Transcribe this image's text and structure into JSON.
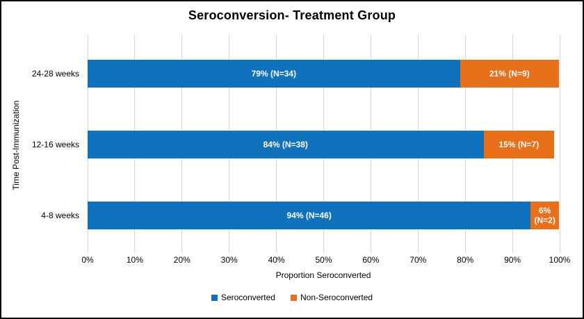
{
  "chart_data": {
    "type": "bar",
    "orientation": "horizontal",
    "stacked": true,
    "title": "Seroconversion- Treatment Group",
    "categories": [
      "24-28 weeks",
      "12-16 weeks",
      "4-8 weeks"
    ],
    "series": [
      {
        "name": "Seroconverted",
        "color": "#1072BC",
        "values": [
          79,
          84,
          94
        ],
        "labels": [
          "79% (N=34)",
          "84% (N=38)",
          "94% (N=46)"
        ]
      },
      {
        "name": "Non-Seroconverted",
        "color": "#E8701A",
        "values": [
          21,
          15,
          6
        ],
        "labels": [
          "21% (N=9)",
          "15% (N=7)",
          "6% (N=2)"
        ]
      }
    ],
    "xlabel": "Proportion Seroconverted",
    "ylabel": "Time Post-Immunization",
    "xlim": [
      0,
      100
    ],
    "xticks": [
      "0%",
      "10%",
      "20%",
      "30%",
      "40%",
      "50%",
      "60%",
      "70%",
      "80%",
      "90%",
      "100%"
    ],
    "grid": true,
    "gridline_color": "#D9D9D9",
    "bar_label_color": "#FFFFFF",
    "legend_position": "bottom"
  }
}
